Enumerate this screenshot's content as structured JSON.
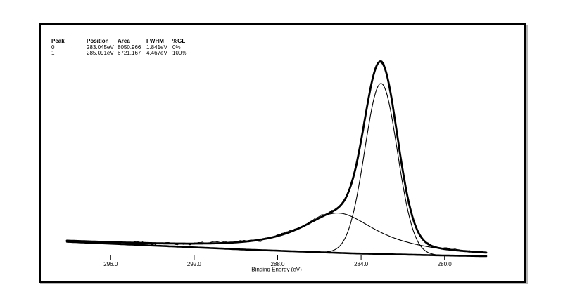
{
  "colors": {
    "foreground": "#000000",
    "background": "#ffffff",
    "frame_shadow": "#b4b4b4"
  },
  "peak_table": {
    "headers": [
      "Peak",
      "Position",
      "Area",
      "FWHM",
      "%GL"
    ],
    "rows": [
      [
        "0",
        "283.045eV",
        "8050.966",
        "1.841eV",
        "0%"
      ],
      [
        "1",
        "285.091eV",
        "6721.167",
        "4.467eV",
        "100%"
      ]
    ]
  },
  "chart_data": {
    "type": "line",
    "title": "",
    "xlabel": "Binding Energy (eV)",
    "x_axis": {
      "range": [
        298.1,
        278.0
      ],
      "direction": "decreasing",
      "ticks": [
        296.0,
        292.0,
        288.0,
        284.0,
        280.0
      ],
      "tick_labels": [
        "296.0",
        "292.0",
        "288.0",
        "284.0",
        "280.0"
      ]
    },
    "y_axis": {
      "visible": false
    },
    "series": [
      {
        "name": "raw-data",
        "style": "thin-noisy"
      },
      {
        "name": "fit-envelope",
        "style": "thick"
      },
      {
        "name": "component-0",
        "style": "thin"
      },
      {
        "name": "component-1",
        "style": "thin"
      },
      {
        "name": "background",
        "style": "thick"
      }
    ],
    "peaks": [
      {
        "id": 0,
        "position_eV": 283.045,
        "area": 8050.966,
        "fwhm_eV": 1.841,
        "gl_percent": 0
      },
      {
        "id": 1,
        "position_eV": 285.091,
        "area": 6721.167,
        "fwhm_eV": 4.467,
        "gl_percent": 100
      }
    ],
    "background": {
      "shape": "shirley-like",
      "be": [
        298.1,
        289.5,
        284.44,
        280.06,
        278.0
      ],
      "counts": [
        389,
        200,
        110,
        59,
        42
      ]
    },
    "noise": {
      "seed": 7,
      "base": 60,
      "proportional": 0.02,
      "step_eV": 0.1
    }
  }
}
